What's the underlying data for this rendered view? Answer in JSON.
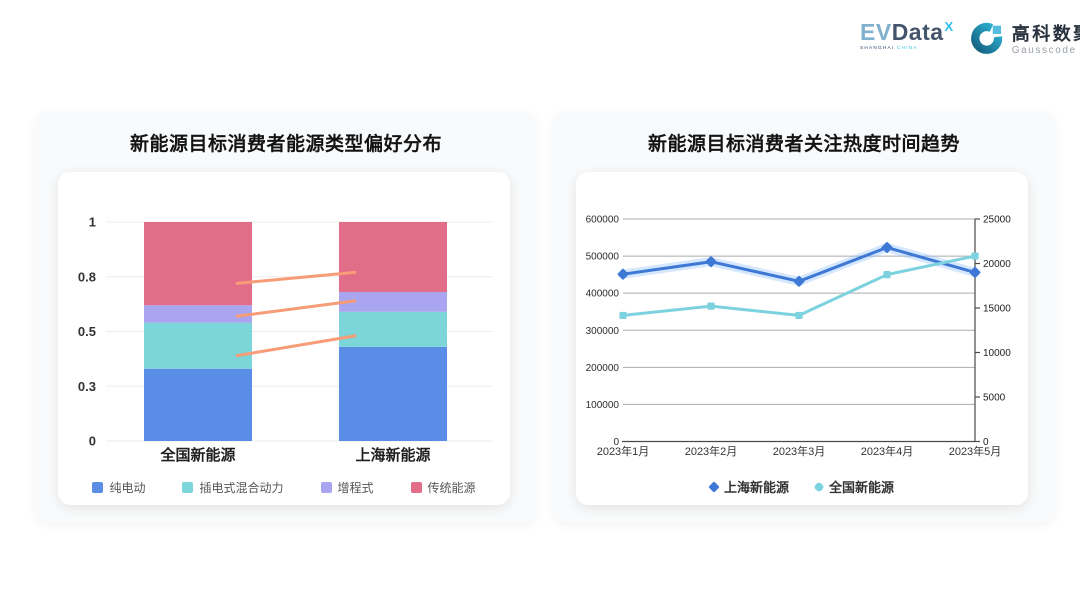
{
  "header": {
    "evdata": {
      "part1": "EV",
      "part2": "Data",
      "sup": "X",
      "sub1": "SHANGHAI",
      "sub2": "CHINA"
    },
    "gausscode": {
      "name_cn": "高科数聚",
      "name_en": "Gausscode"
    }
  },
  "cards": {
    "bar": {
      "title": "新能源目标消费者能源类型偏好分布"
    },
    "line": {
      "title": "新能源目标消费者关注热度时间趋势"
    }
  },
  "chart_data": [
    {
      "type": "bar",
      "stacked": true,
      "title": "新能源目标消费者能源类型偏好分布",
      "categories": [
        "全国新能源",
        "上海新能源"
      ],
      "series": [
        {
          "name": "纯电动",
          "color": "#5A8EE6",
          "values": [
            0.33,
            0.43
          ]
        },
        {
          "name": "插电式混合动力",
          "color": "#7CD5D9",
          "values": [
            0.21,
            0.16
          ]
        },
        {
          "name": "增程式",
          "color": "#A9A5F0",
          "values": [
            0.08,
            0.09
          ]
        },
        {
          "name": "传统能源",
          "color": "#E16D89",
          "values": [
            0.38,
            0.32
          ]
        }
      ],
      "ylim": [
        0,
        1
      ],
      "yticks": [
        {
          "v": 0,
          "label": "0"
        },
        {
          "v": 0.25,
          "label": "0.3"
        },
        {
          "v": 0.5,
          "label": "0.5"
        },
        {
          "v": 0.75,
          "label": "0.8"
        },
        {
          "v": 1,
          "label": "1"
        }
      ],
      "grid": true,
      "legend_position": "bottom",
      "connectors": {
        "color": "#F89B77",
        "lines": [
          {
            "from": 0.72,
            "to": 0.77
          },
          {
            "from": 0.57,
            "to": 0.64
          },
          {
            "from": 0.39,
            "to": 0.48
          }
        ]
      }
    },
    {
      "type": "line",
      "title": "新能源目标消费者关注热度时间趋势",
      "categories": [
        "2023年1月",
        "2023年2月",
        "2023年3月",
        "2023年4月",
        "2023年5月"
      ],
      "series": [
        {
          "name": "上海新能源",
          "yaxis": "right",
          "color": "#3E78D5",
          "marker": "diamond",
          "glow": true,
          "values": [
            18800,
            20200,
            18000,
            21800,
            19000
          ]
        },
        {
          "name": "全国新能源",
          "yaxis": "left",
          "color": "#7CD2DE",
          "marker": "square",
          "glow": false,
          "values": [
            340000,
            365000,
            340000,
            450000,
            500000
          ]
        }
      ],
      "left_axis": {
        "min": 0,
        "max": 600000,
        "ticks": [
          "0",
          "100000",
          "200000",
          "300000",
          "400000",
          "500000",
          "600000"
        ]
      },
      "right_axis": {
        "min": 0,
        "max": 25000,
        "ticks": [
          "0",
          "5000",
          "10000",
          "15000",
          "20000",
          "25000"
        ]
      },
      "grid": true,
      "legend_position": "bottom"
    }
  ]
}
